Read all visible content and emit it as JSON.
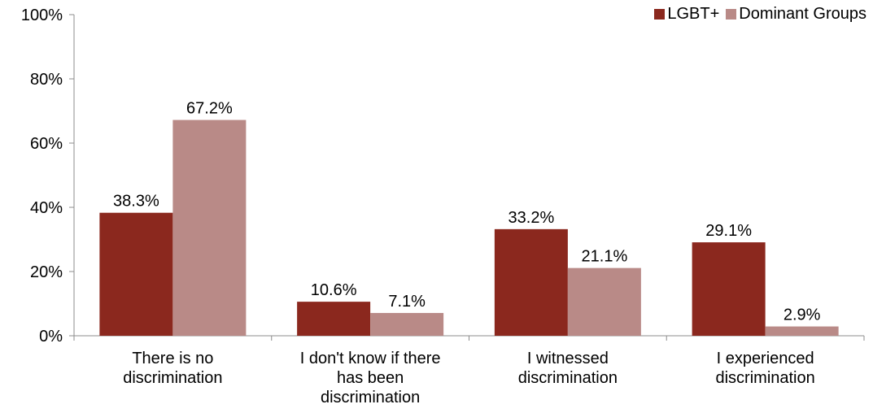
{
  "chart_data": {
    "type": "bar",
    "categories": [
      [
        "There is no",
        "discrimination"
      ],
      [
        "I don't know if there",
        "has been",
        "discrimination"
      ],
      [
        "I witnessed",
        "discrimination"
      ],
      [
        "I experienced",
        "discrimination"
      ]
    ],
    "series": [
      {
        "name": "LGBT+",
        "color": "#8B281E",
        "values": [
          38.3,
          10.6,
          33.2,
          29.1
        ],
        "labels": [
          "38.3%",
          "10.6%",
          "33.2%",
          "29.1%"
        ]
      },
      {
        "name": "Dominant Groups",
        "color": "#B98A87",
        "values": [
          67.2,
          7.1,
          21.1,
          2.9
        ],
        "labels": [
          "67.2%",
          "7.1%",
          "21.1%",
          "2.9%"
        ]
      }
    ],
    "yticks": [
      "0%",
      "20%",
      "40%",
      "60%",
      "80%",
      "100%"
    ],
    "ylim": [
      0,
      100
    ],
    "legend_position": "top-right",
    "grid": false
  }
}
